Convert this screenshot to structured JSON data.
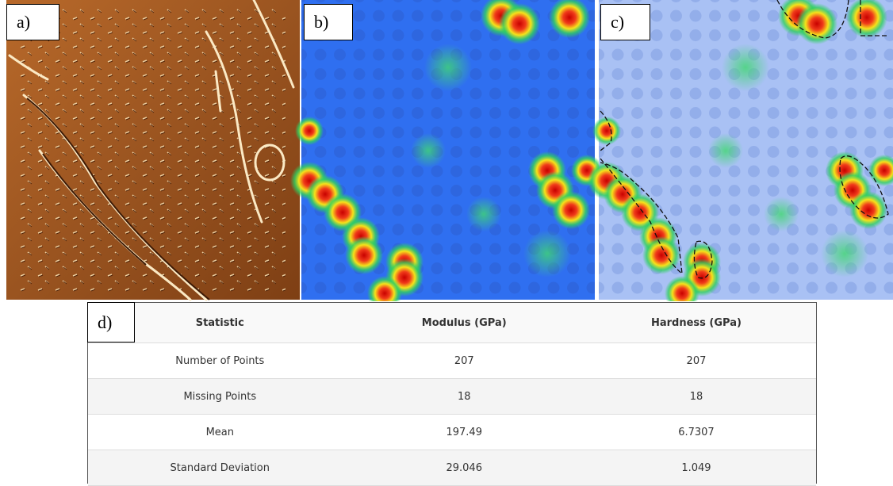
{
  "panels": [
    {
      "label": "a)"
    },
    {
      "label": "b)"
    },
    {
      "label": "c)"
    }
  ],
  "table": {
    "label": "d)",
    "header": [
      "Statistic",
      "Modulus (GPa)",
      "Hardness (GPa)"
    ],
    "rows": [
      [
        "Number of Points",
        "207",
        "207"
      ],
      [
        "Missing Points",
        "18",
        "18"
      ],
      [
        "Mean",
        "197.49",
        "6.7307"
      ],
      [
        "Standard Deviation",
        "29.046",
        "1.049"
      ]
    ]
  }
}
